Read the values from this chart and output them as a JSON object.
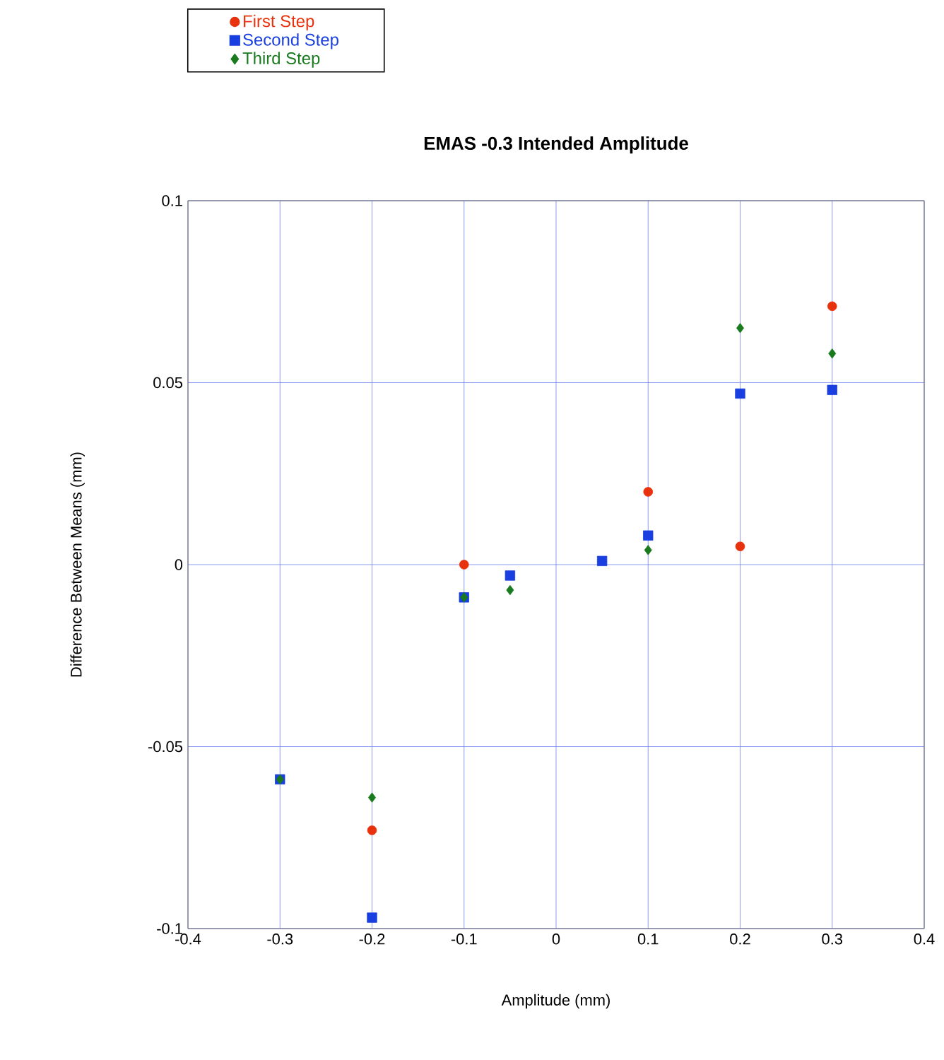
{
  "chart_data": {
    "type": "scatter",
    "title": "EMAS -0.3 Intended Amplitude",
    "xlabel": "Amplitude (mm)",
    "ylabel": "Difference Between Means (mm)",
    "xlim": [
      -0.4,
      0.4
    ],
    "xticks": [
      -0.4,
      -0.3,
      -0.2,
      -0.1,
      0,
      0.1,
      0.2,
      0.3,
      0.4
    ],
    "ylim": [
      -0.1,
      0.1
    ],
    "yticks": [
      -0.1,
      -0.05,
      0,
      0.05,
      0.1
    ],
    "grid": true,
    "legend": "top left",
    "series": [
      {
        "name": "First Step",
        "color": "#e8320e",
        "marker": "circle",
        "x": [
          -0.2,
          -0.1,
          0.1,
          0.2,
          0.3
        ],
        "values": [
          -0.073,
          0.0,
          0.02,
          0.005,
          0.071
        ]
      },
      {
        "name": "Second Step",
        "color": "#1a3fe0",
        "marker": "square",
        "x": [
          -0.3,
          -0.2,
          -0.1,
          -0.05,
          0.05,
          0.1,
          0.2,
          0.3
        ],
        "values": [
          -0.059,
          -0.097,
          -0.009,
          -0.003,
          0.001,
          0.008,
          0.047,
          0.048
        ]
      },
      {
        "name": "Third Step",
        "color": "#1a7a1e",
        "marker": "diamond",
        "x": [
          -0.3,
          -0.2,
          -0.1,
          -0.05,
          0.1,
          0.2,
          0.3
        ],
        "values": [
          -0.059,
          -0.064,
          -0.009,
          -0.007,
          0.004,
          0.065,
          0.058
        ]
      }
    ]
  }
}
